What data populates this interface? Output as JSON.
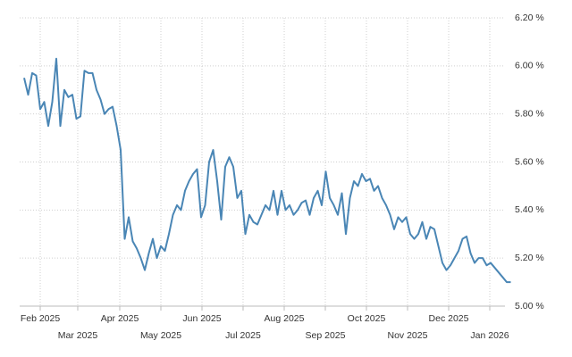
{
  "chart_data": {
    "type": "line",
    "color": "#4a86b5",
    "grid": true,
    "y_axis_side": "right",
    "values": [
      5.95,
      5.88,
      5.97,
      5.96,
      5.82,
      5.85,
      5.75,
      5.85,
      6.03,
      5.75,
      5.9,
      5.87,
      5.88,
      5.78,
      5.79,
      5.98,
      5.97,
      5.97,
      5.9,
      5.86,
      5.8,
      5.82,
      5.83,
      5.75,
      5.65,
      5.28,
      5.37,
      5.27,
      5.24,
      5.2,
      5.15,
      5.22,
      5.28,
      5.2,
      5.25,
      5.23,
      5.3,
      5.38,
      5.42,
      5.4,
      5.48,
      5.52,
      5.55,
      5.57,
      5.37,
      5.42,
      5.6,
      5.65,
      5.52,
      5.36,
      5.58,
      5.62,
      5.58,
      5.45,
      5.48,
      5.3,
      5.38,
      5.35,
      5.34,
      5.38,
      5.42,
      5.4,
      5.48,
      5.38,
      5.48,
      5.4,
      5.42,
      5.38,
      5.4,
      5.43,
      5.44,
      5.38,
      5.45,
      5.48,
      5.42,
      5.56,
      5.45,
      5.42,
      5.38,
      5.47,
      5.3,
      5.45,
      5.52,
      5.5,
      5.55,
      5.52,
      5.53,
      5.48,
      5.5,
      5.45,
      5.42,
      5.38,
      5.32,
      5.37,
      5.35,
      5.37,
      5.3,
      5.28,
      5.3,
      5.35,
      5.28,
      5.33,
      5.32,
      5.25,
      5.18,
      5.15,
      5.17,
      5.2,
      5.23,
      5.28,
      5.29,
      5.22,
      5.18,
      5.2,
      5.2,
      5.17,
      5.18,
      5.16,
      5.14,
      5.12,
      5.1,
      5.1
    ],
    "xlim": [
      0,
      121
    ],
    "xticks": [
      {
        "value": 4,
        "label": "Feb 2025"
      },
      {
        "value": 13.33,
        "label": "Mar 2025"
      },
      {
        "value": 23.78,
        "label": "Apr 2025"
      },
      {
        "value": 34,
        "label": "May 2025"
      },
      {
        "value": 44.22,
        "label": "Jun 2025"
      },
      {
        "value": 54.44,
        "label": "Jul 2025"
      },
      {
        "value": 64.67,
        "label": "Aug 2025"
      },
      {
        "value": 74.89,
        "label": "Sep 2025"
      },
      {
        "value": 85.11,
        "label": "Oct 2025"
      },
      {
        "value": 95.33,
        "label": "Nov 2025"
      },
      {
        "value": 105.56,
        "label": "Dec 2025"
      },
      {
        "value": 115.78,
        "label": "Jan 2026"
      }
    ],
    "ylim": [
      5,
      6.2
    ],
    "yticks": [
      {
        "value": 5.0,
        "label": "5.00 %"
      },
      {
        "value": 5.2,
        "label": "5.20 %"
      },
      {
        "value": 5.4,
        "label": "5.40 %"
      },
      {
        "value": 5.6,
        "label": "5.60 %"
      },
      {
        "value": 5.8,
        "label": "5.80 %"
      },
      {
        "value": 6.0,
        "label": "6.00 %"
      },
      {
        "value": 6.2,
        "label": "6.20 %"
      }
    ]
  }
}
